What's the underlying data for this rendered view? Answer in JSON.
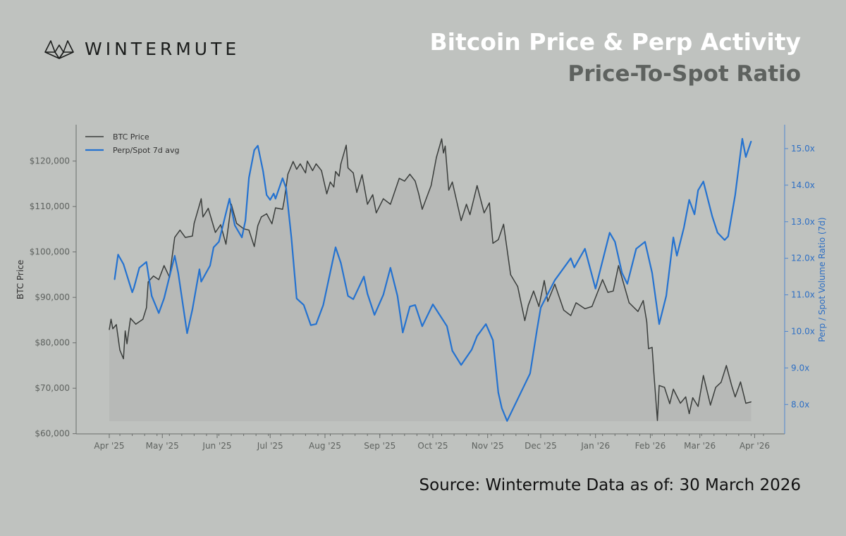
{
  "header": {
    "logo_text": "WINTERMUTE",
    "title": "Bitcoin Price & Perp Activity",
    "subtitle": "Price-To-Spot Ratio"
  },
  "footer": {
    "source": "Source: Wintermute  Data as of: 30 March 2026"
  },
  "colors": {
    "btc": "#3a3d3b",
    "ratio": "#2472d0",
    "background": "#bfc2bf",
    "title": "#ffffff",
    "subtitle": "#5e625f"
  },
  "chart_data": {
    "type": "line",
    "title": "Bitcoin Price & Perp Activity",
    "subtitle": "Price-To-Spot Ratio",
    "ylabel": "BTC Price",
    "y2label": "Perp / Spot Volume Ratio (7d)",
    "ylim": [
      60000,
      127000
    ],
    "y2lim": [
      7.1,
      15.7
    ],
    "xlim": [
      "2025-03-15",
      "2026-04-15"
    ],
    "legend_placement": "top-left",
    "grid": false,
    "x_tick_labels": [
      {
        "date": "2025-04-01",
        "label": "Apr '25"
      },
      {
        "date": "2025-05-01",
        "label": "May '25"
      },
      {
        "date": "2025-06-01",
        "label": "Jun '25"
      },
      {
        "date": "2025-07-01",
        "label": "Jul '25"
      },
      {
        "date": "2025-08-01",
        "label": "Aug '25"
      },
      {
        "date": "2025-09-01",
        "label": "Sep '25"
      },
      {
        "date": "2025-10-01",
        "label": "Oct '25"
      },
      {
        "date": "2025-11-01",
        "label": "Nov '25"
      },
      {
        "date": "2025-12-01",
        "label": "Dec '25"
      },
      {
        "date": "2026-01-01",
        "label": "Jan '26"
      },
      {
        "date": "2026-02-01",
        "label": "Feb '26"
      },
      {
        "date": "2026-03-01",
        "label": "Mar '26"
      },
      {
        "date": "2026-04-01",
        "label": "Apr '26"
      }
    ],
    "y_tick_labels": [
      {
        "value": 60000,
        "label": "$60,000"
      },
      {
        "value": 70000,
        "label": "$70,000"
      },
      {
        "value": 80000,
        "label": "$80,000"
      },
      {
        "value": 90000,
        "label": "$90,000"
      },
      {
        "value": 100000,
        "label": "$100,000"
      },
      {
        "value": 110000,
        "label": "$110,000"
      },
      {
        "value": 120000,
        "label": "$120,000"
      }
    ],
    "y2_tick_labels": [
      {
        "value": 8,
        "label": "8.0x"
      },
      {
        "value": 9,
        "label": "9.0x"
      },
      {
        "value": 10,
        "label": "10.0x"
      },
      {
        "value": 11,
        "label": "11.0x"
      },
      {
        "value": 12,
        "label": "12.0x"
      },
      {
        "value": 13,
        "label": "13.0x"
      },
      {
        "value": 14,
        "label": "14.0x"
      },
      {
        "value": 15,
        "label": "15.0x"
      }
    ],
    "series": [
      {
        "name": "BTC Price",
        "axis": "left",
        "points": [
          [
            "2025-04-01",
            82900
          ],
          [
            "2025-04-02",
            85200
          ],
          [
            "2025-04-03",
            83100
          ],
          [
            "2025-04-05",
            84000
          ],
          [
            "2025-04-07",
            78400
          ],
          [
            "2025-04-09",
            76500
          ],
          [
            "2025-04-10",
            82600
          ],
          [
            "2025-04-11",
            79800
          ],
          [
            "2025-04-13",
            85400
          ],
          [
            "2025-04-16",
            84100
          ],
          [
            "2025-04-20",
            85200
          ],
          [
            "2025-04-22",
            87700
          ],
          [
            "2025-04-23",
            93400
          ],
          [
            "2025-04-26",
            94700
          ],
          [
            "2025-04-29",
            93900
          ],
          [
            "2025-05-02",
            97000
          ],
          [
            "2025-05-05",
            94500
          ],
          [
            "2025-05-08",
            103200
          ],
          [
            "2025-05-11",
            104800
          ],
          [
            "2025-05-14",
            103200
          ],
          [
            "2025-05-18",
            103500
          ],
          [
            "2025-05-19",
            106300
          ],
          [
            "2025-05-23",
            111700
          ],
          [
            "2025-05-24",
            107700
          ],
          [
            "2025-05-27",
            109600
          ],
          [
            "2025-05-31",
            104300
          ],
          [
            "2025-06-03",
            106000
          ],
          [
            "2025-06-06",
            101700
          ],
          [
            "2025-06-09",
            110500
          ],
          [
            "2025-06-12",
            106300
          ],
          [
            "2025-06-16",
            105100
          ],
          [
            "2025-06-19",
            104800
          ],
          [
            "2025-06-22",
            101200
          ],
          [
            "2025-06-24",
            105800
          ],
          [
            "2025-06-26",
            107700
          ],
          [
            "2025-06-29",
            108400
          ],
          [
            "2025-07-02",
            106200
          ],
          [
            "2025-07-04",
            109700
          ],
          [
            "2025-07-08",
            109400
          ],
          [
            "2025-07-09",
            111500
          ],
          [
            "2025-07-11",
            117100
          ],
          [
            "2025-07-14",
            119900
          ],
          [
            "2025-07-16",
            118200
          ],
          [
            "2025-07-18",
            119400
          ],
          [
            "2025-07-21",
            117400
          ],
          [
            "2025-07-22",
            120000
          ],
          [
            "2025-07-25",
            117900
          ],
          [
            "2025-07-27",
            119400
          ],
          [
            "2025-07-30",
            117900
          ],
          [
            "2025-08-02",
            112800
          ],
          [
            "2025-08-04",
            115400
          ],
          [
            "2025-08-06",
            114300
          ],
          [
            "2025-08-07",
            117700
          ],
          [
            "2025-08-09",
            116700
          ],
          [
            "2025-08-10",
            119400
          ],
          [
            "2025-08-13",
            123500
          ],
          [
            "2025-08-14",
            118500
          ],
          [
            "2025-08-17",
            117400
          ],
          [
            "2025-08-19",
            113100
          ],
          [
            "2025-08-22",
            117000
          ],
          [
            "2025-08-25",
            110500
          ],
          [
            "2025-08-28",
            112600
          ],
          [
            "2025-08-30",
            108600
          ],
          [
            "2025-09-03",
            111700
          ],
          [
            "2025-09-07",
            110500
          ],
          [
            "2025-09-12",
            116200
          ],
          [
            "2025-09-15",
            115600
          ],
          [
            "2025-09-18",
            117100
          ],
          [
            "2025-09-21",
            115600
          ],
          [
            "2025-09-23",
            112800
          ],
          [
            "2025-09-25",
            109400
          ],
          [
            "2025-09-30",
            114600
          ],
          [
            "2025-10-03",
            120800
          ],
          [
            "2025-10-06",
            124900
          ],
          [
            "2025-10-07",
            121800
          ],
          [
            "2025-10-08",
            123300
          ],
          [
            "2025-10-10",
            113600
          ],
          [
            "2025-10-12",
            115400
          ],
          [
            "2025-10-17",
            106900
          ],
          [
            "2025-10-20",
            110500
          ],
          [
            "2025-10-22",
            108200
          ],
          [
            "2025-10-26",
            114600
          ],
          [
            "2025-10-30",
            108600
          ],
          [
            "2025-11-02",
            110800
          ],
          [
            "2025-11-04",
            101900
          ],
          [
            "2025-11-07",
            102700
          ],
          [
            "2025-11-10",
            106100
          ],
          [
            "2025-11-14",
            95000
          ],
          [
            "2025-11-18",
            92400
          ],
          [
            "2025-11-22",
            84900
          ],
          [
            "2025-11-24",
            88300
          ],
          [
            "2025-11-27",
            91400
          ],
          [
            "2025-11-30",
            88000
          ],
          [
            "2025-12-03",
            93700
          ],
          [
            "2025-12-05",
            89100
          ],
          [
            "2025-12-09",
            92900
          ],
          [
            "2025-12-14",
            87200
          ],
          [
            "2025-12-18",
            86000
          ],
          [
            "2025-12-21",
            88800
          ],
          [
            "2025-12-26",
            87500
          ],
          [
            "2025-12-30",
            88000
          ],
          [
            "2026-01-05",
            93900
          ],
          [
            "2026-01-08",
            91100
          ],
          [
            "2026-01-11",
            91400
          ],
          [
            "2026-01-14",
            97000
          ],
          [
            "2026-01-20",
            88800
          ],
          [
            "2026-01-25",
            86900
          ],
          [
            "2026-01-28",
            89300
          ],
          [
            "2026-01-30",
            84600
          ],
          [
            "2026-01-31",
            78700
          ],
          [
            "2026-02-02",
            79000
          ],
          [
            "2026-02-03",
            73300
          ],
          [
            "2026-02-05",
            62900
          ],
          [
            "2026-02-06",
            70600
          ],
          [
            "2026-02-09",
            70200
          ],
          [
            "2026-02-12",
            66600
          ],
          [
            "2026-02-14",
            69800
          ],
          [
            "2026-02-18",
            66700
          ],
          [
            "2026-02-21",
            68100
          ],
          [
            "2026-02-23",
            64400
          ],
          [
            "2026-02-25",
            67900
          ],
          [
            "2026-02-28",
            66000
          ],
          [
            "2026-03-03",
            72800
          ],
          [
            "2026-03-07",
            66300
          ],
          [
            "2026-03-10",
            70200
          ],
          [
            "2026-03-13",
            71300
          ],
          [
            "2026-03-16",
            75000
          ],
          [
            "2026-03-19",
            70600
          ],
          [
            "2026-03-21",
            68100
          ],
          [
            "2026-03-24",
            71400
          ],
          [
            "2026-03-27",
            66700
          ],
          [
            "2026-03-30",
            67000
          ]
        ]
      },
      {
        "name": "Perp/Spot 7d avg",
        "axis": "right",
        "points": [
          [
            "2025-04-04",
            11.42
          ],
          [
            "2025-04-06",
            12.1
          ],
          [
            "2025-04-09",
            11.84
          ],
          [
            "2025-04-14",
            11.07
          ],
          [
            "2025-04-15",
            11.2
          ],
          [
            "2025-04-18",
            11.74
          ],
          [
            "2025-04-22",
            11.9
          ],
          [
            "2025-04-25",
            10.97
          ],
          [
            "2025-04-29",
            10.5
          ],
          [
            "2025-05-02",
            10.9
          ],
          [
            "2025-05-08",
            12.07
          ],
          [
            "2025-05-10",
            11.6
          ],
          [
            "2025-05-15",
            9.95
          ],
          [
            "2025-05-18",
            10.6
          ],
          [
            "2025-05-22",
            11.7
          ],
          [
            "2025-05-23",
            11.36
          ],
          [
            "2025-05-28",
            11.8
          ],
          [
            "2025-05-30",
            12.3
          ],
          [
            "2025-06-02",
            12.45
          ],
          [
            "2025-06-08",
            13.63
          ],
          [
            "2025-06-11",
            12.9
          ],
          [
            "2025-06-15",
            12.57
          ],
          [
            "2025-06-17",
            13.03
          ],
          [
            "2025-06-19",
            14.2
          ],
          [
            "2025-06-22",
            14.96
          ],
          [
            "2025-06-24",
            15.08
          ],
          [
            "2025-06-27",
            14.38
          ],
          [
            "2025-06-29",
            13.73
          ],
          [
            "2025-07-01",
            13.6
          ],
          [
            "2025-07-03",
            13.77
          ],
          [
            "2025-07-04",
            13.63
          ],
          [
            "2025-07-08",
            14.19
          ],
          [
            "2025-07-10",
            13.92
          ],
          [
            "2025-07-13",
            12.57
          ],
          [
            "2025-07-16",
            10.9
          ],
          [
            "2025-07-20",
            10.72
          ],
          [
            "2025-07-24",
            10.17
          ],
          [
            "2025-07-27",
            10.2
          ],
          [
            "2025-07-31",
            10.72
          ],
          [
            "2025-08-07",
            12.3
          ],
          [
            "2025-08-10",
            11.87
          ],
          [
            "2025-08-14",
            10.97
          ],
          [
            "2025-08-17",
            10.88
          ],
          [
            "2025-08-23",
            11.5
          ],
          [
            "2025-08-25",
            11.03
          ],
          [
            "2025-08-29",
            10.45
          ],
          [
            "2025-09-03",
            11.0
          ],
          [
            "2025-09-07",
            11.74
          ],
          [
            "2025-09-11",
            10.97
          ],
          [
            "2025-09-14",
            9.97
          ],
          [
            "2025-09-18",
            10.68
          ],
          [
            "2025-09-21",
            10.72
          ],
          [
            "2025-09-25",
            10.14
          ],
          [
            "2025-10-01",
            10.74
          ],
          [
            "2025-10-09",
            10.14
          ],
          [
            "2025-10-12",
            9.47
          ],
          [
            "2025-10-17",
            9.08
          ],
          [
            "2025-10-23",
            9.5
          ],
          [
            "2025-10-26",
            9.87
          ],
          [
            "2025-10-31",
            10.2
          ],
          [
            "2025-11-04",
            9.76
          ],
          [
            "2025-11-07",
            8.33
          ],
          [
            "2025-11-09",
            7.9
          ],
          [
            "2025-11-12",
            7.55
          ],
          [
            "2025-11-25",
            8.85
          ],
          [
            "2025-11-29",
            10.07
          ],
          [
            "2025-12-01",
            10.65
          ],
          [
            "2025-12-09",
            11.4
          ],
          [
            "2025-12-18",
            12.0
          ],
          [
            "2025-12-20",
            11.75
          ],
          [
            "2025-12-26",
            12.26
          ],
          [
            "2026-01-01",
            11.17
          ],
          [
            "2026-01-09",
            12.7
          ],
          [
            "2026-01-12",
            12.45
          ],
          [
            "2026-01-16",
            11.6
          ],
          [
            "2026-01-19",
            11.3
          ],
          [
            "2026-01-24",
            12.26
          ],
          [
            "2026-01-29",
            12.45
          ],
          [
            "2026-02-02",
            11.6
          ],
          [
            "2026-02-06",
            10.2
          ],
          [
            "2026-02-10",
            10.97
          ],
          [
            "2026-02-14",
            12.57
          ],
          [
            "2026-02-16",
            12.07
          ],
          [
            "2026-02-20",
            12.84
          ],
          [
            "2026-02-23",
            13.6
          ],
          [
            "2026-02-26",
            13.2
          ],
          [
            "2026-02-28",
            13.86
          ],
          [
            "2026-03-03",
            14.1
          ],
          [
            "2026-03-08",
            13.15
          ],
          [
            "2026-03-11",
            12.7
          ],
          [
            "2026-03-15",
            12.5
          ],
          [
            "2026-03-17",
            12.6
          ],
          [
            "2026-03-21",
            13.73
          ],
          [
            "2026-03-25",
            15.27
          ],
          [
            "2026-03-27",
            14.77
          ],
          [
            "2026-03-30",
            15.2
          ]
        ]
      }
    ]
  }
}
